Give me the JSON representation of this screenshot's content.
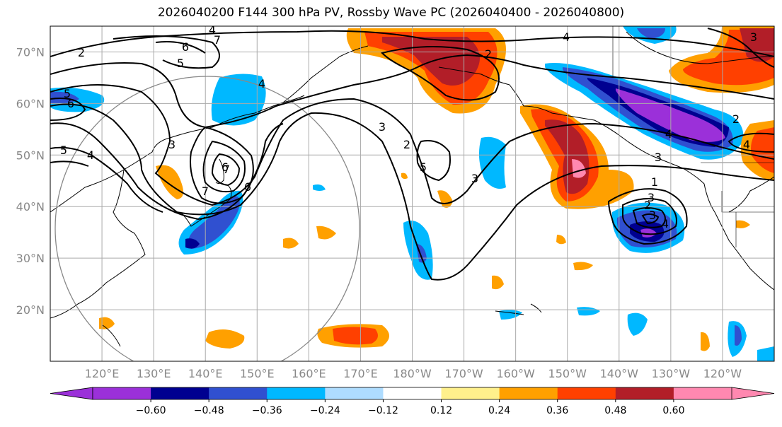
{
  "title": "2026040200 F144 300 hPa PV, Rossby Wave PC (2026040400 - 2026040800)",
  "lat_labels": [
    "70°N",
    "60°N",
    "50°N",
    "40°N",
    "30°N",
    "20°N"
  ],
  "lat_values": [
    70,
    60,
    50,
    40,
    30,
    20
  ],
  "lon_labels": [
    "120°E",
    "130°E",
    "140°E",
    "150°E",
    "160°E",
    "170°E",
    "180°W",
    "170°W",
    "160°W",
    "150°W",
    "140°W",
    "130°W",
    "120°W"
  ],
  "lon_values": [
    120,
    130,
    140,
    150,
    160,
    170,
    180,
    190,
    200,
    210,
    220,
    230,
    240
  ],
  "extent": {
    "lon_min": 110,
    "lon_max": 250,
    "lat_min": 10,
    "lat_max": 75
  },
  "colorbar": {
    "colors": [
      "#9b30d9",
      "#000090",
      "#3050d0",
      "#00b8ff",
      "#aedcff",
      "#ffffff",
      "#fff08c",
      "#ffa000",
      "#ff4000",
      "#b21e28",
      "#ff88b0"
    ],
    "tick_labels": [
      "−0.60",
      "−0.48",
      "−0.36",
      "−0.24",
      "−0.12",
      "0.12",
      "0.24",
      "0.36",
      "0.48",
      "0.60"
    ]
  },
  "contour_labels": [
    "2",
    "6",
    "5",
    "7",
    "4",
    "5",
    "6",
    "4",
    "3",
    "7",
    "6",
    "5",
    "4",
    "3",
    "2",
    "5",
    "3",
    "4",
    "2",
    "3",
    "2",
    "4",
    "3",
    "1",
    "2",
    "3",
    "4",
    "3",
    "4",
    "6",
    "7"
  ]
}
